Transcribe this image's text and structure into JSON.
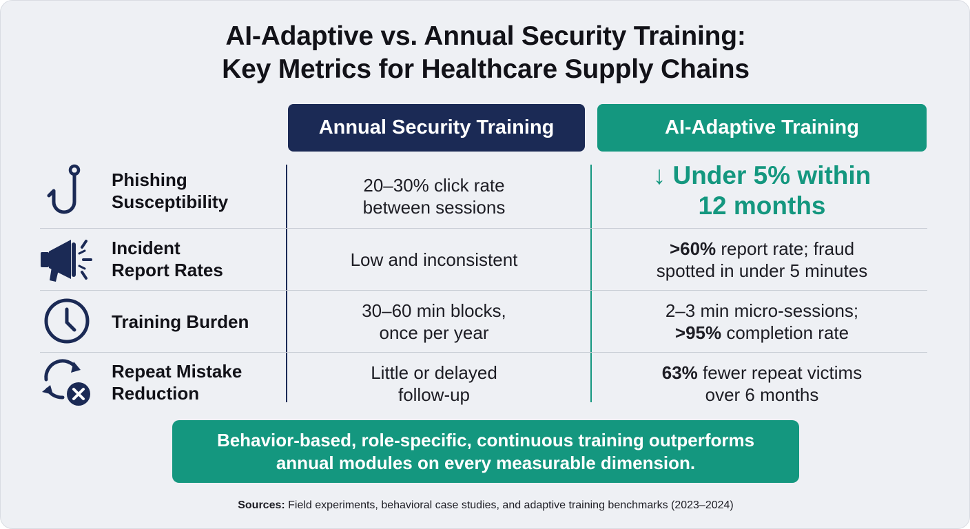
{
  "title": {
    "line1": "AI-Adaptive vs. Annual Security Training:",
    "line2": "Key Metrics for Healthcare Supply Chains"
  },
  "columns": {
    "annual": "Annual Security Training",
    "adaptive": "AI-Adaptive Training"
  },
  "colors": {
    "navy": "#1b2a55",
    "teal": "#14977f",
    "background": "#eef0f4"
  },
  "rows": [
    {
      "icon": "fishing-hook-icon",
      "label_line1": "Phishing",
      "label_line2": "Susceptibility",
      "annual_line1": "20–30% click rate",
      "annual_line2": "between sessions",
      "adaptive_line1": "↓ Under 5% within",
      "adaptive_line2": "12 months"
    },
    {
      "icon": "megaphone-icon",
      "label_line1": "Incident",
      "label_line2": "Report Rates",
      "annual_line1": "Low and inconsistent",
      "adaptive_line1_bold": ">60%",
      "adaptive_line1_rest": " report rate; fraud",
      "adaptive_line2": "spotted in under 5 minutes"
    },
    {
      "icon": "clock-icon",
      "label_line1": "Training Burden",
      "annual_line1": "30–60 min blocks,",
      "annual_line2": "once per year",
      "adaptive_line1": "2–3 min micro-sessions;",
      "adaptive_line2_bold": ">95%",
      "adaptive_line2_rest": " completion rate"
    },
    {
      "icon": "repeat-cancel-icon",
      "label_line1": "Repeat Mistake",
      "label_line2": "Reduction",
      "annual_line1": "Little or delayed",
      "annual_line2": "follow-up",
      "adaptive_line1_bold": "63%",
      "adaptive_line1_rest": " fewer repeat victims",
      "adaptive_line2": "over 6 months"
    }
  ],
  "banner": {
    "line1": "Behavior-based, role-specific, continuous training outperforms",
    "line2": "annual modules on every measurable dimension."
  },
  "sources": {
    "label": "Sources:",
    "text": " Field experiments, behavioral case studies, and adaptive training benchmarks (2023–2024)"
  }
}
